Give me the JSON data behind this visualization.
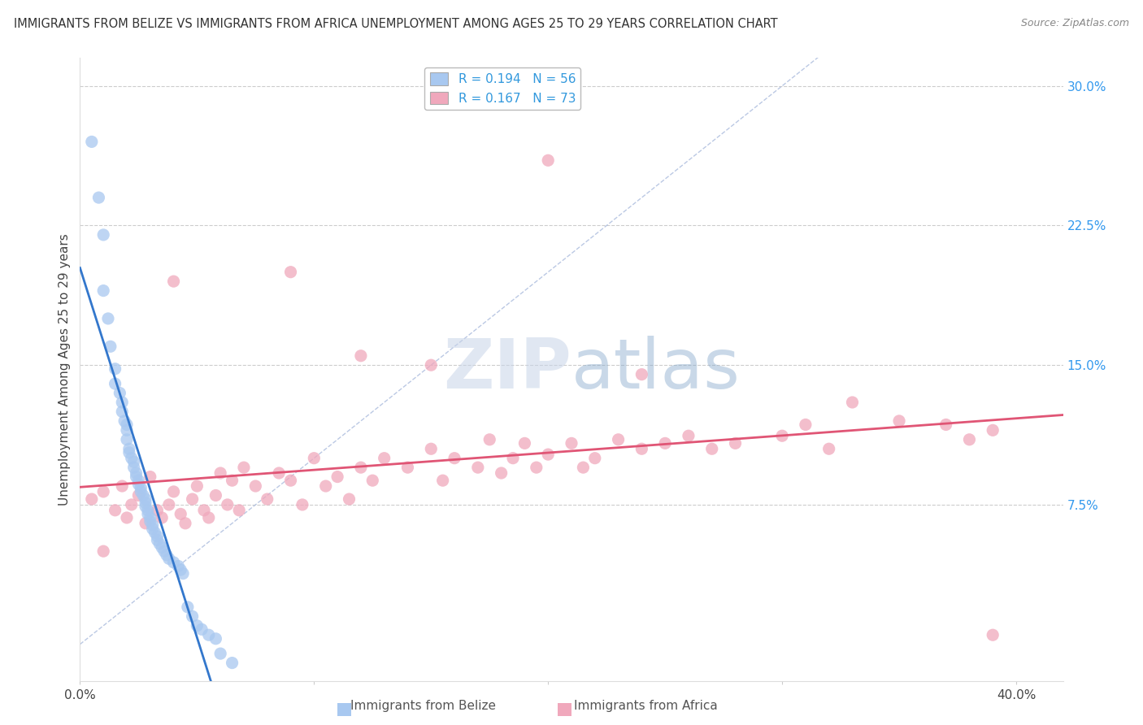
{
  "title": "IMMIGRANTS FROM BELIZE VS IMMIGRANTS FROM AFRICA UNEMPLOYMENT AMONG AGES 25 TO 29 YEARS CORRELATION CHART",
  "source": "Source: ZipAtlas.com",
  "ylabel": "Unemployment Among Ages 25 to 29 years",
  "xlim": [
    0.0,
    0.42
  ],
  "ylim": [
    -0.02,
    0.315
  ],
  "yticks_right": [
    0.075,
    0.15,
    0.225,
    0.3
  ],
  "yticklabels_right": [
    "7.5%",
    "15.0%",
    "22.5%",
    "30.0%"
  ],
  "grid_color": "#cccccc",
  "background_color": "#ffffff",
  "belize_color": "#a8c8f0",
  "africa_color": "#f0a8bc",
  "legend_label_belize": "R = 0.194   N = 56",
  "legend_label_africa": "R = 0.167   N = 73",
  "belize_trend_color": "#3377cc",
  "africa_trend_color": "#e05575",
  "diag_line_color": "#aabbdd",
  "watermark_text": "ZIPatlas",
  "belize_x": [
    0.005,
    0.008,
    0.01,
    0.01,
    0.012,
    0.013,
    0.015,
    0.015,
    0.017,
    0.018,
    0.018,
    0.019,
    0.02,
    0.02,
    0.02,
    0.021,
    0.021,
    0.022,
    0.023,
    0.023,
    0.024,
    0.024,
    0.025,
    0.025,
    0.026,
    0.026,
    0.027,
    0.028,
    0.028,
    0.028,
    0.029,
    0.029,
    0.03,
    0.03,
    0.031,
    0.031,
    0.032,
    0.033,
    0.033,
    0.034,
    0.035,
    0.036,
    0.037,
    0.038,
    0.04,
    0.042,
    0.043,
    0.044,
    0.046,
    0.048,
    0.05,
    0.052,
    0.055,
    0.058,
    0.06,
    0.065
  ],
  "belize_y": [
    0.27,
    0.24,
    0.22,
    0.19,
    0.175,
    0.16,
    0.148,
    0.14,
    0.135,
    0.13,
    0.125,
    0.12,
    0.118,
    0.115,
    0.11,
    0.105,
    0.103,
    0.1,
    0.098,
    0.095,
    0.092,
    0.09,
    0.088,
    0.086,
    0.084,
    0.082,
    0.08,
    0.078,
    0.076,
    0.074,
    0.072,
    0.07,
    0.068,
    0.066,
    0.064,
    0.062,
    0.06,
    0.058,
    0.056,
    0.054,
    0.052,
    0.05,
    0.048,
    0.046,
    0.044,
    0.042,
    0.04,
    0.038,
    0.02,
    0.015,
    0.01,
    0.008,
    0.005,
    0.003,
    -0.005,
    -0.01
  ],
  "africa_x": [
    0.005,
    0.01,
    0.015,
    0.018,
    0.02,
    0.022,
    0.025,
    0.028,
    0.03,
    0.033,
    0.035,
    0.038,
    0.04,
    0.043,
    0.045,
    0.048,
    0.05,
    0.053,
    0.055,
    0.058,
    0.06,
    0.063,
    0.065,
    0.068,
    0.07,
    0.075,
    0.08,
    0.085,
    0.09,
    0.095,
    0.1,
    0.105,
    0.11,
    0.115,
    0.12,
    0.125,
    0.13,
    0.14,
    0.15,
    0.155,
    0.16,
    0.17,
    0.175,
    0.18,
    0.185,
    0.19,
    0.195,
    0.2,
    0.21,
    0.215,
    0.22,
    0.23,
    0.24,
    0.25,
    0.26,
    0.27,
    0.28,
    0.3,
    0.31,
    0.32,
    0.35,
    0.37,
    0.38,
    0.39,
    0.04,
    0.09,
    0.12,
    0.15,
    0.2,
    0.24,
    0.33,
    0.39,
    0.01
  ],
  "africa_y": [
    0.078,
    0.082,
    0.072,
    0.085,
    0.068,
    0.075,
    0.08,
    0.065,
    0.09,
    0.072,
    0.068,
    0.075,
    0.082,
    0.07,
    0.065,
    0.078,
    0.085,
    0.072,
    0.068,
    0.08,
    0.092,
    0.075,
    0.088,
    0.072,
    0.095,
    0.085,
    0.078,
    0.092,
    0.088,
    0.075,
    0.1,
    0.085,
    0.09,
    0.078,
    0.095,
    0.088,
    0.1,
    0.095,
    0.105,
    0.088,
    0.1,
    0.095,
    0.11,
    0.092,
    0.1,
    0.108,
    0.095,
    0.102,
    0.108,
    0.095,
    0.1,
    0.11,
    0.105,
    0.108,
    0.112,
    0.105,
    0.108,
    0.112,
    0.118,
    0.105,
    0.12,
    0.118,
    0.11,
    0.115,
    0.195,
    0.2,
    0.155,
    0.15,
    0.26,
    0.145,
    0.13,
    0.005,
    0.05
  ]
}
